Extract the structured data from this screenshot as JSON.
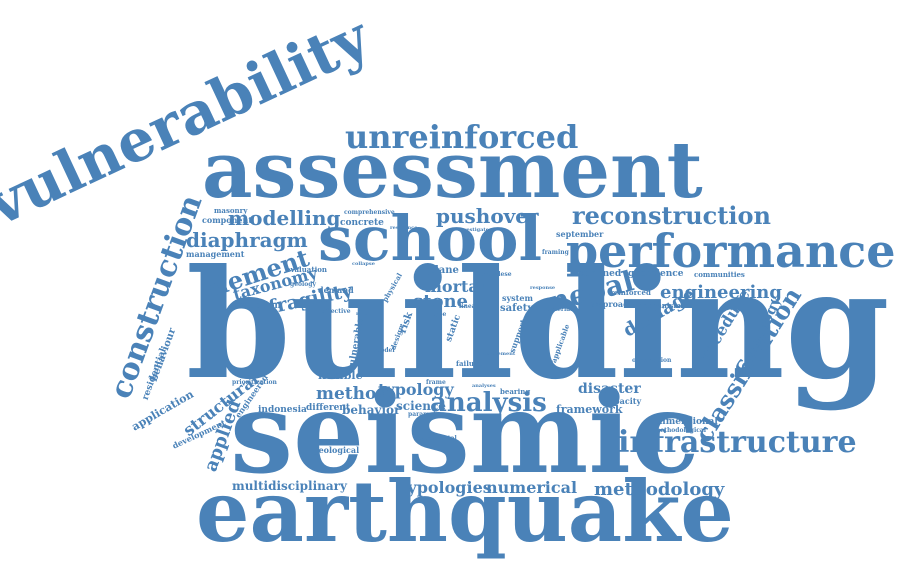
{
  "color": "#4a82b8",
  "words": [
    "building",
    "seismic",
    "earthquake",
    "assessment",
    "vulnerability",
    "school",
    "performance",
    "unreinforced",
    "infrastructure",
    "analysis",
    "construction",
    "reconstruction",
    "classification",
    "nepal",
    "element",
    "diaphragm",
    "modelling",
    "pushover",
    "engineering",
    "fragility",
    "taxonomy",
    "damage",
    "procedure",
    "technology",
    "stone",
    "mortar",
    "applied",
    "structural",
    "method",
    "typology",
    "methodology",
    "typologies",
    "numerical",
    "multidisciplinary",
    "disaster",
    "framework",
    "science",
    "behavior",
    "different",
    "indonesia",
    "application",
    "behaviour",
    "residential",
    "flexible",
    "dimensional",
    "geological",
    "development",
    "engineered",
    "capacity",
    "reduction",
    "management",
    "component",
    "masonry",
    "concrete",
    "geoscience",
    "communities",
    "mechanism",
    "approach",
    "confined",
    "september",
    "reinforced",
    "comprehensive",
    "physical",
    "safety",
    "system",
    "vulnerable",
    "evaluation",
    "geology",
    "demand",
    "effective",
    "plane",
    "material",
    "observation",
    "bearing",
    "parameter",
    "methodological",
    "static",
    "failure",
    "design",
    "model",
    "risk",
    "support",
    "applicable",
    "prioritization",
    "incremental",
    "framing",
    "resilience",
    "investigate",
    "nepalese",
    "frame",
    "type",
    "linear",
    "result",
    "analyses",
    "improvement",
    "collapse",
    "response"
  ]
}
